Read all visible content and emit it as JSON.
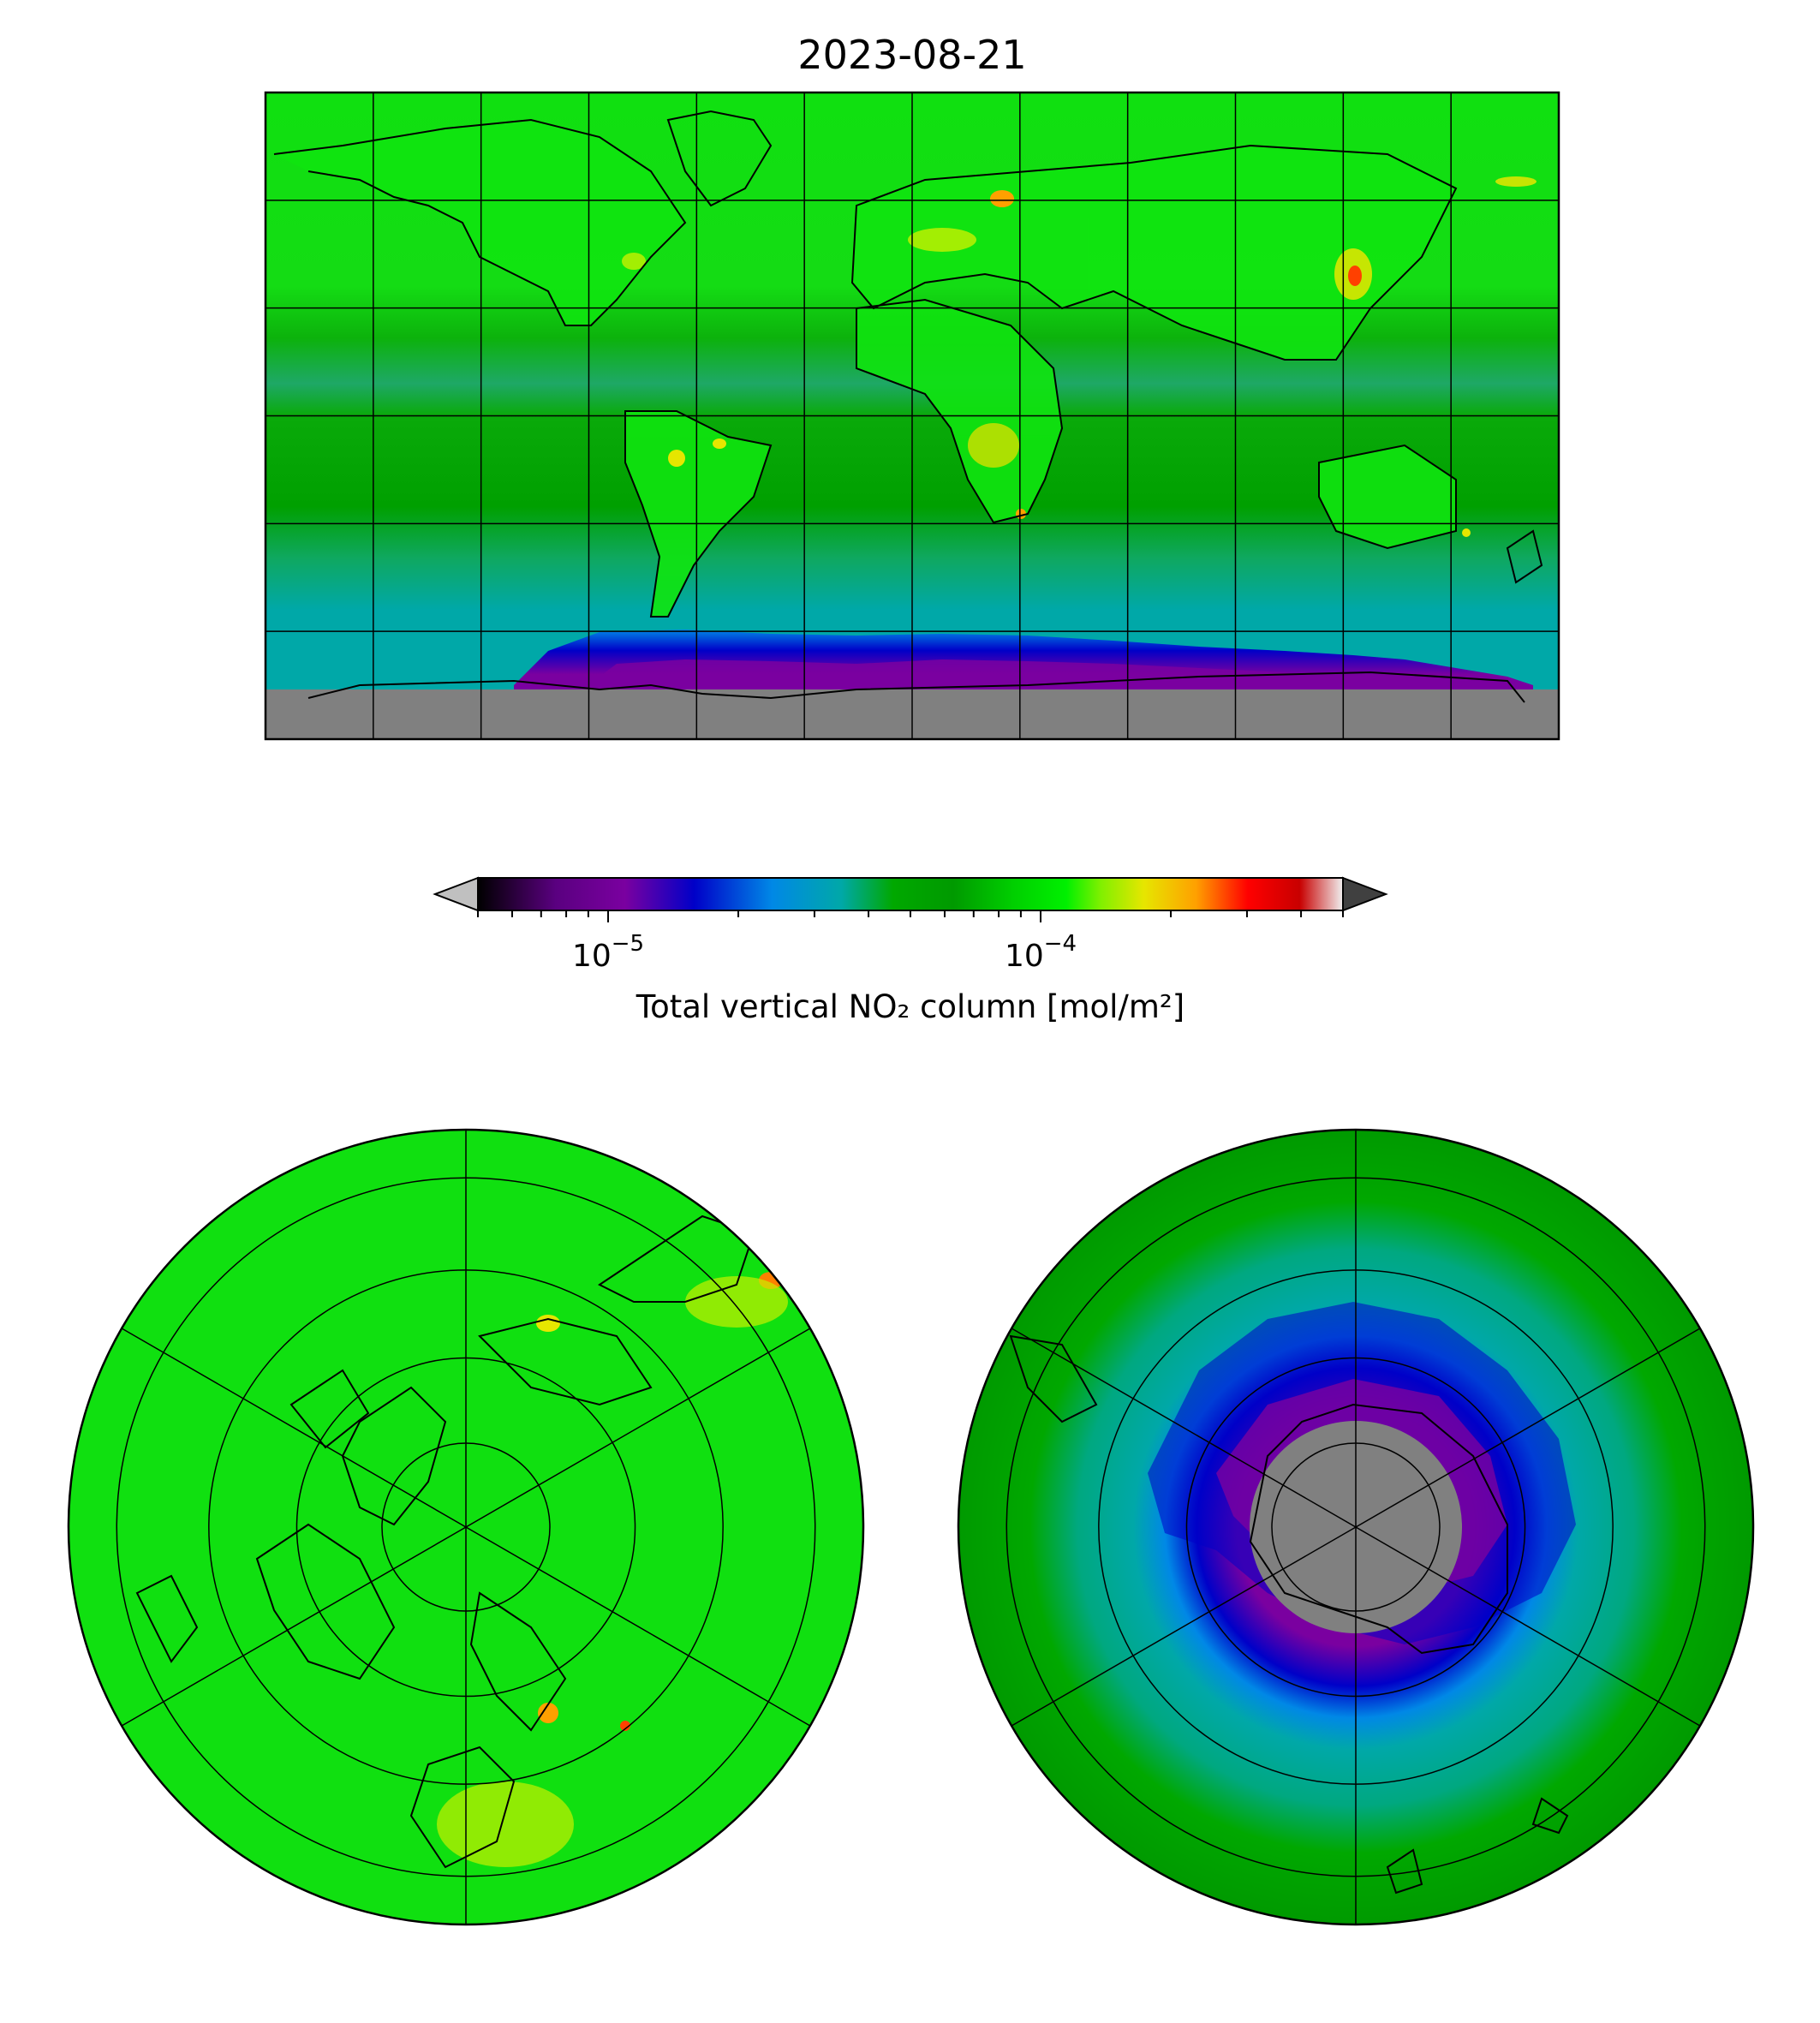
{
  "title": "2023-08-21",
  "colorbar": {
    "label": "Total vertical NO₂ column [mol/m²]",
    "scale": "log",
    "range": [
      5e-06,
      0.0005
    ],
    "extend": "both",
    "under_color": "#c0c0c0",
    "over_color": "#404040",
    "ticks": [
      {
        "value": 1e-05,
        "mantissa": "10",
        "exponent": "−5"
      },
      {
        "value": 0.0001,
        "mantissa": "10",
        "exponent": "−4"
      }
    ],
    "colormap": [
      "#000000",
      "#7a00a0",
      "#0000c8",
      "#0088e6",
      "#00a8a8",
      "#009a00",
      "#00e400",
      "#e6e600",
      "#ffa000",
      "#e60000",
      "#c80000",
      "#f0f0f0"
    ]
  },
  "maps": {
    "global": {
      "projection": "PlateCarree",
      "gridlines_lon": [
        -180,
        -150,
        -120,
        -90,
        -60,
        -30,
        0,
        30,
        60,
        90,
        120,
        150,
        180
      ],
      "gridlines_lat": [
        -90,
        -60,
        -30,
        0,
        30,
        60,
        90
      ],
      "colors": {
        "land": "#00e000",
        "tropics": "#00a800",
        "southern_ocean": "#00a8a8",
        "ozone_hole_edge": "#0000c8",
        "polar_night": "#7a00a0",
        "no_data": "#808080"
      }
    },
    "north_polar": {
      "projection": "NorthPolarStereo",
      "lat_circles": [
        50,
        60,
        70,
        80
      ],
      "meridians": [
        0,
        60,
        120,
        180,
        240,
        300
      ],
      "colors": {
        "background": "#00e000"
      }
    },
    "south_polar": {
      "projection": "SouthPolarStereo",
      "lat_circles": [
        -50,
        -60,
        -70,
        -80
      ],
      "meridians": [
        0,
        60,
        120,
        180,
        240,
        300
      ],
      "colors": {
        "background": "#00a800",
        "mid": "#00a8a8",
        "ring": "#0000c8",
        "inner": "#7a00a0",
        "no_data": "#808080"
      }
    }
  }
}
